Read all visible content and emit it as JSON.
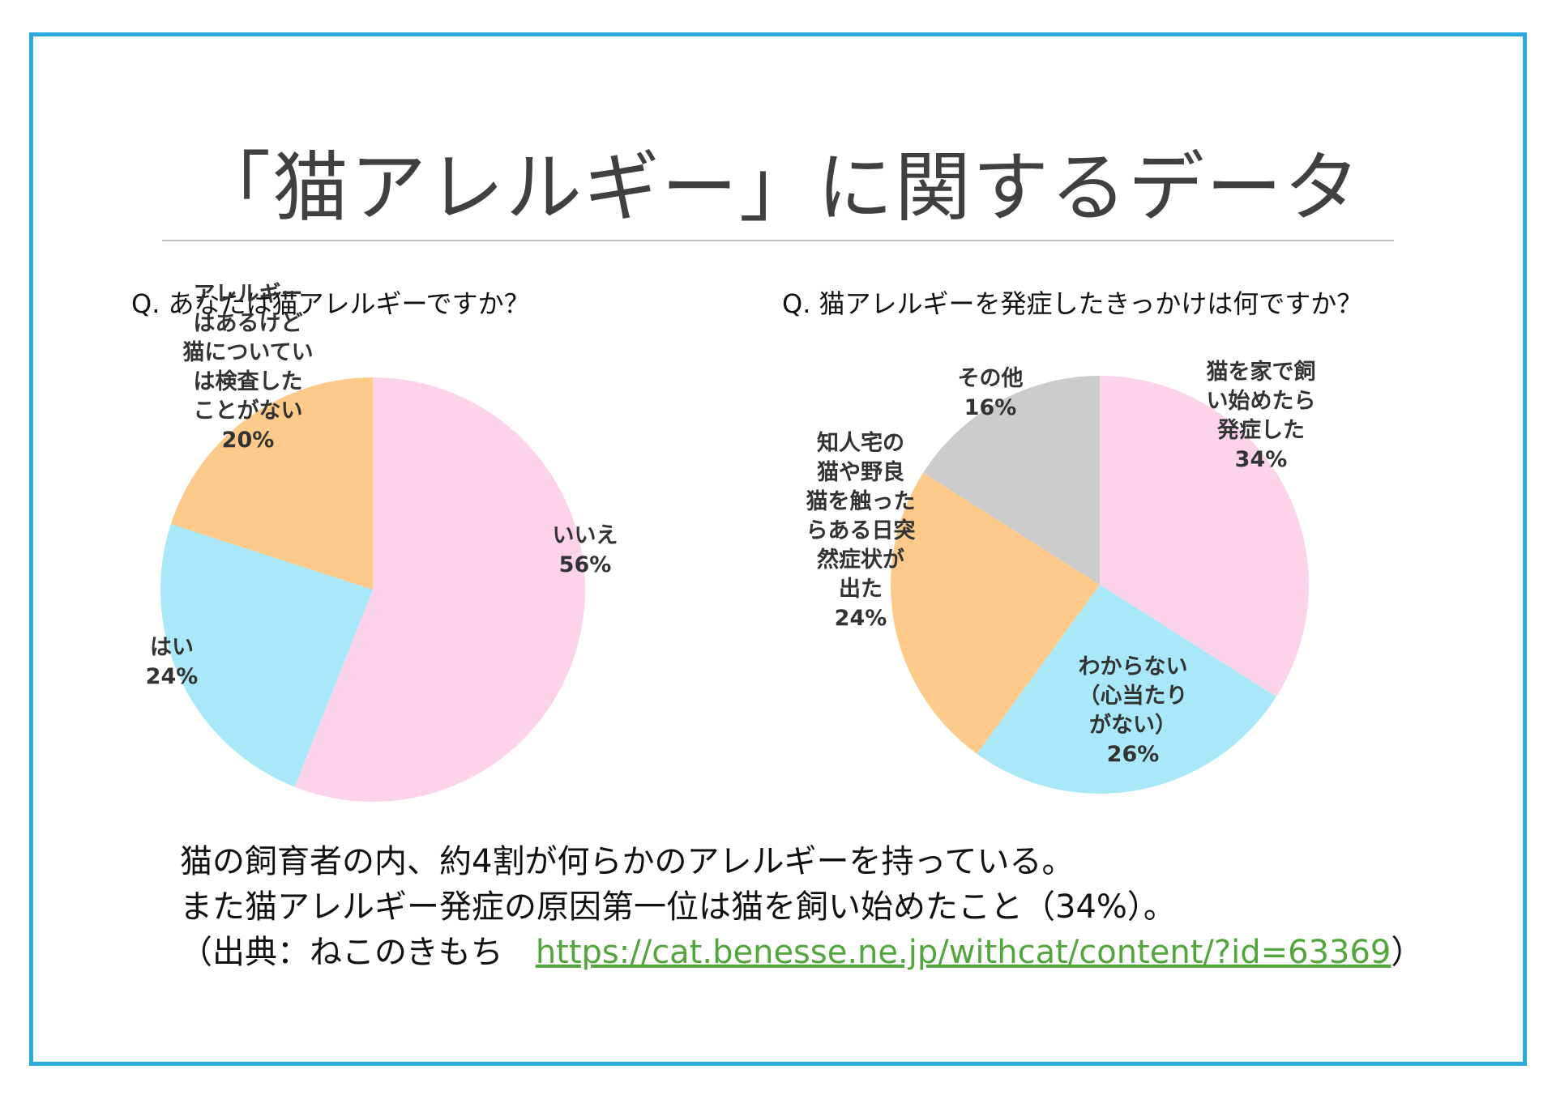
{
  "title": "「猫アレルギー」に関するデータ",
  "chart_data": [
    {
      "type": "pie",
      "title": "Q. あなたは猫アレルギーですか？",
      "slices": [
        {
          "label_lines": [
            "いいえ",
            "56%"
          ],
          "value": 56,
          "color": "#fdd3ea"
        },
        {
          "label_lines": [
            "はい",
            "24%"
          ],
          "value": 24,
          "color": "#a8e8f8"
        },
        {
          "label_lines": [
            "アレルギー",
            "はあるけど",
            "猫についてい",
            "は検査した",
            "ことがない",
            "20%"
          ],
          "value": 20,
          "color": "#fdca8a"
        }
      ]
    },
    {
      "type": "pie",
      "title": "Q. 猫アレルギーを発症したきっかけは何ですか？",
      "slices": [
        {
          "label_lines": [
            "猫を家で飼",
            "い始めたら",
            "発症した",
            "34%"
          ],
          "value": 34,
          "color": "#fdd3ea"
        },
        {
          "label_lines": [
            "わからない",
            "（心当たり",
            "がない）",
            "26%"
          ],
          "value": 26,
          "color": "#a8e8f8"
        },
        {
          "label_lines": [
            "知人宅の",
            "猫や野良",
            "猫を触った",
            "らある日突",
            "然症状が",
            "出た",
            "24%"
          ],
          "value": 24,
          "color": "#fdca8a"
        },
        {
          "label_lines": [
            "その他",
            "16%"
          ],
          "value": 16,
          "color": "#cccccc"
        }
      ]
    }
  ],
  "footer": {
    "line1": "猫の飼育者の内、約4割が何らかのアレルギーを持っている。",
    "line2": "また猫アレルギー発症の原因第一位は猫を飼い始めたこと（34%）。",
    "line3_prefix": "（出典：ねこのきもち　",
    "link": "https://cat.benesse.ne.jp/withcat/content/?id=63369",
    "line3_suffix": "）"
  }
}
